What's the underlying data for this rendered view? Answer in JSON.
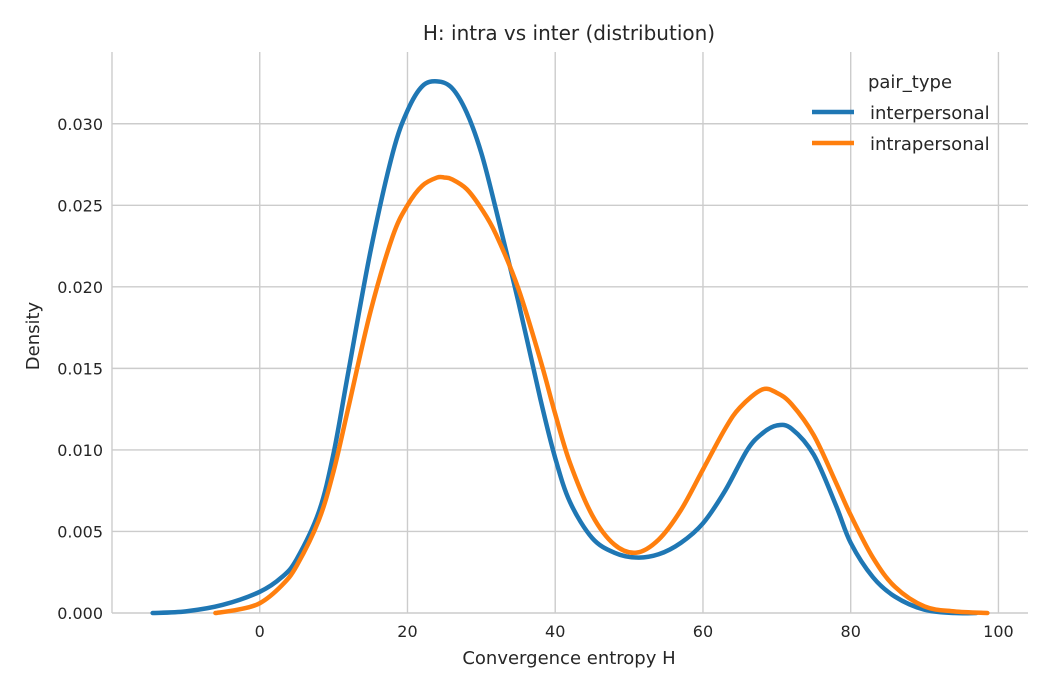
{
  "chart_data": {
    "type": "line",
    "title": "H: intra vs inter (distribution)",
    "xlabel": "Convergence entropy H",
    "ylabel": "Density",
    "xlim": [
      -20,
      104
    ],
    "ylim": [
      0,
      0.0344
    ],
    "xticks": [
      0,
      20,
      40,
      60,
      80,
      100
    ],
    "yticks": [
      0.0,
      0.005,
      0.01,
      0.015,
      0.02,
      0.025,
      0.03
    ],
    "ytick_labels": [
      "0.000",
      "0.005",
      "0.010",
      "0.015",
      "0.020",
      "0.025",
      "0.030"
    ],
    "grid": true,
    "legend": {
      "title": "pair_type",
      "placement": "top-right"
    },
    "series": [
      {
        "name": "interpersonal",
        "color": "#1f77b4",
        "x": [
          -14.5,
          -10,
          -5,
          0,
          3,
          5,
          8,
          10,
          12,
          15,
          18,
          20,
          22,
          24,
          26,
          28,
          30,
          32,
          35,
          38,
          40,
          42,
          45,
          48,
          51,
          54,
          57,
          60,
          63,
          66,
          68,
          70,
          72,
          75,
          78,
          80,
          83,
          86,
          90,
          94,
          97
        ],
        "values": [
          0.0,
          0.0001,
          0.0005,
          0.0013,
          0.0022,
          0.0033,
          0.0062,
          0.0098,
          0.0148,
          0.0222,
          0.0282,
          0.0308,
          0.0323,
          0.0326,
          0.0322,
          0.0307,
          0.0282,
          0.0247,
          0.0191,
          0.0131,
          0.0095,
          0.0068,
          0.0046,
          0.0037,
          0.0034,
          0.0036,
          0.0043,
          0.0055,
          0.0075,
          0.01,
          0.011,
          0.0115,
          0.0113,
          0.0097,
          0.0066,
          0.0043,
          0.0022,
          0.001,
          0.0002,
          0.0,
          0.0
        ]
      },
      {
        "name": "intrapersonal",
        "color": "#ff7f0e",
        "x": [
          -6,
          -3,
          0,
          3,
          5,
          8,
          10,
          12,
          15,
          18,
          20,
          22,
          24,
          25,
          26,
          28,
          30,
          32,
          35,
          38,
          40,
          42,
          45,
          48,
          51,
          54,
          57,
          60,
          63,
          65,
          68,
          70,
          72,
          75,
          78,
          80,
          83,
          86,
          90,
          94,
          98.5
        ],
        "values": [
          0.0,
          0.0002,
          0.0006,
          0.0017,
          0.0029,
          0.0057,
          0.0087,
          0.0126,
          0.0185,
          0.0231,
          0.025,
          0.0262,
          0.0267,
          0.0267,
          0.0266,
          0.026,
          0.0248,
          0.0232,
          0.0199,
          0.0155,
          0.0122,
          0.0092,
          0.006,
          0.0042,
          0.0037,
          0.0045,
          0.0063,
          0.0088,
          0.0113,
          0.0126,
          0.0137,
          0.0135,
          0.0128,
          0.0109,
          0.008,
          0.006,
          0.0034,
          0.0016,
          0.0004,
          0.0001,
          0.0
        ]
      }
    ]
  }
}
